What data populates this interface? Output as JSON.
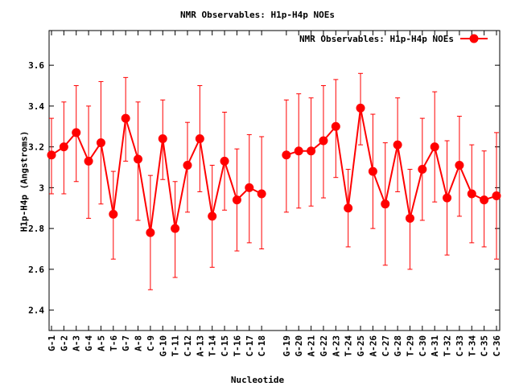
{
  "chart_data": {
    "type": "line",
    "title": "NMR Observables: H1p-H4p NOEs",
    "xlabel": "Nucleotide",
    "ylabel": "H1p-H4p (Angstroms)",
    "ylim": [
      2.3,
      3.77
    ],
    "yticks": [
      "2.4",
      "2.6",
      "2.8",
      "3",
      "3.2",
      "3.4",
      "3.6"
    ],
    "ytick_values": [
      2.4,
      2.6,
      2.8,
      3.0,
      3.2,
      3.4,
      3.6
    ],
    "grid": false,
    "legend_position": "top-right",
    "series_color": "#ff0000",
    "series": [
      {
        "name": "NMR Observables: H1p-H4p NOEs",
        "segments": [
          [
            {
              "label": "G-1",
              "y": 3.16,
              "low": 2.97,
              "high": 3.34
            },
            {
              "label": "G-2",
              "y": 3.2,
              "low": 2.97,
              "high": 3.42
            },
            {
              "label": "A-3",
              "y": 3.27,
              "low": 3.03,
              "high": 3.5
            },
            {
              "label": "G-4",
              "y": 3.13,
              "low": 2.85,
              "high": 3.4
            },
            {
              "label": "A-5",
              "y": 3.22,
              "low": 2.92,
              "high": 3.52
            },
            {
              "label": "T-6",
              "y": 2.87,
              "low": 2.65,
              "high": 3.08
            },
            {
              "label": "G-7",
              "y": 3.34,
              "low": 3.13,
              "high": 3.54
            },
            {
              "label": "A-8",
              "y": 3.14,
              "low": 2.84,
              "high": 3.42
            },
            {
              "label": "C-9",
              "y": 2.78,
              "low": 2.5,
              "high": 3.06
            },
            {
              "label": "G-10",
              "y": 3.24,
              "low": 3.04,
              "high": 3.43
            },
            {
              "label": "T-11",
              "y": 2.8,
              "low": 2.56,
              "high": 3.03
            },
            {
              "label": "C-12",
              "y": 3.11,
              "low": 2.88,
              "high": 3.32
            },
            {
              "label": "A-13",
              "y": 3.24,
              "low": 2.98,
              "high": 3.5
            },
            {
              "label": "T-14",
              "y": 2.86,
              "low": 2.61,
              "high": 3.11
            },
            {
              "label": "C-15",
              "y": 3.13,
              "low": 2.89,
              "high": 3.37
            },
            {
              "label": "T-16",
              "y": 2.94,
              "low": 2.69,
              "high": 3.19
            },
            {
              "label": "C-17",
              "y": 3.0,
              "low": 2.73,
              "high": 3.26
            },
            {
              "label": "C-18",
              "y": 2.97,
              "low": 2.7,
              "high": 3.25
            }
          ],
          [
            {
              "label": "G-19",
              "y": 3.16,
              "low": 2.88,
              "high": 3.43
            },
            {
              "label": "G-20",
              "y": 3.18,
              "low": 2.9,
              "high": 3.46
            },
            {
              "label": "A-21",
              "y": 3.18,
              "low": 2.91,
              "high": 3.44
            },
            {
              "label": "G-22",
              "y": 3.23,
              "low": 2.95,
              "high": 3.5
            },
            {
              "label": "A-23",
              "y": 3.3,
              "low": 3.05,
              "high": 3.53
            },
            {
              "label": "T-24",
              "y": 2.9,
              "low": 2.71,
              "high": 3.09
            },
            {
              "label": "G-25",
              "y": 3.39,
              "low": 3.21,
              "high": 3.56
            },
            {
              "label": "A-26",
              "y": 3.08,
              "low": 2.8,
              "high": 3.36
            },
            {
              "label": "C-27",
              "y": 2.92,
              "low": 2.62,
              "high": 3.22
            },
            {
              "label": "G-28",
              "y": 3.21,
              "low": 2.98,
              "high": 3.44
            },
            {
              "label": "T-29",
              "y": 2.85,
              "low": 2.6,
              "high": 3.09
            },
            {
              "label": "C-30",
              "y": 3.09,
              "low": 2.84,
              "high": 3.34
            },
            {
              "label": "A-31",
              "y": 3.2,
              "low": 2.93,
              "high": 3.47
            },
            {
              "label": "T-32",
              "y": 2.95,
              "low": 2.67,
              "high": 3.23
            },
            {
              "label": "C-33",
              "y": 3.11,
              "low": 2.86,
              "high": 3.35
            },
            {
              "label": "T-34",
              "y": 2.97,
              "low": 2.73,
              "high": 3.21
            },
            {
              "label": "C-35",
              "y": 2.94,
              "low": 2.71,
              "high": 3.18
            },
            {
              "label": "C-36",
              "y": 2.96,
              "low": 2.65,
              "high": 3.27
            }
          ]
        ]
      }
    ]
  }
}
